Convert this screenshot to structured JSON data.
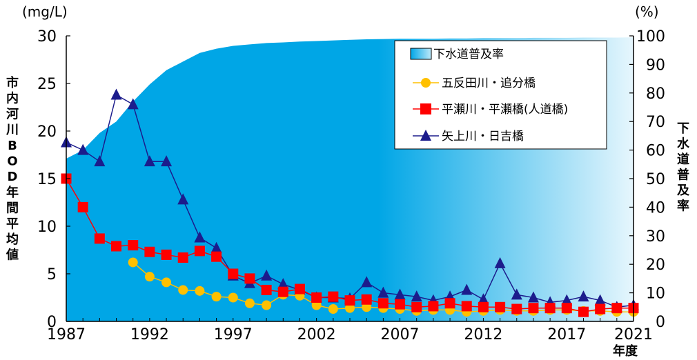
{
  "chart_data": {
    "type": "line",
    "left_axis": {
      "unit": "(mg/L)",
      "label": "市内河川BOD年間平均値",
      "range": [
        0,
        30
      ],
      "ticks": [
        "0",
        "5",
        "10",
        "15",
        "20",
        "25",
        "30"
      ]
    },
    "right_axis": {
      "unit": "(%)",
      "label": "下水道普及率",
      "range": [
        0,
        100
      ],
      "ticks": [
        "0",
        "10",
        "20",
        "30",
        "40",
        "50",
        "60",
        "70",
        "80",
        "90",
        "100"
      ]
    },
    "x_axis": {
      "label": "年度",
      "range": [
        1987,
        2021
      ],
      "ticks": [
        "1987",
        "1992",
        "1997",
        "2002",
        "2007",
        "2012",
        "2017",
        "2021"
      ]
    },
    "legend_position": "top-right",
    "series": [
      {
        "name": "下水道普及率",
        "type": "area",
        "axis": "right",
        "color": "#00a6e6",
        "x": [
          1987,
          1988,
          1989,
          1990,
          1991,
          1992,
          1993,
          1994,
          1995,
          1996,
          1997,
          1998,
          1999,
          2000,
          2001,
          2002,
          2003,
          2004,
          2005,
          2006,
          2007,
          2008,
          2009,
          2010,
          2011,
          2012,
          2013,
          2014,
          2015,
          2016,
          2017,
          2018,
          2019,
          2020,
          2021
        ],
        "values": [
          57,
          60,
          66,
          70,
          77,
          83,
          88,
          91,
          94,
          95.5,
          96.5,
          97,
          97.5,
          97.7,
          98,
          98.2,
          98.4,
          98.6,
          98.8,
          98.9,
          99,
          99,
          99,
          99.1,
          99.1,
          99.2,
          99.2,
          99.2,
          99.3,
          99.3,
          99.3,
          99.4,
          99.4,
          99.4,
          99.5
        ]
      },
      {
        "name": "五反田川・追分橋",
        "type": "line",
        "axis": "left",
        "color": "#ffc000",
        "marker": "circle",
        "x": [
          1991,
          1992,
          1993,
          1994,
          1995,
          1996,
          1997,
          1998,
          1999,
          2000,
          2001,
          2002,
          2003,
          2004,
          2005,
          2006,
          2007,
          2008,
          2009,
          2010,
          2011,
          2012,
          2013,
          2014,
          2015,
          2016,
          2017,
          2018,
          2019,
          2020,
          2021
        ],
        "values": [
          6.2,
          4.7,
          4.1,
          3.3,
          3.2,
          2.6,
          2.5,
          1.9,
          1.7,
          2.8,
          2.7,
          1.7,
          1.3,
          1.4,
          1.5,
          1.4,
          1.3,
          1.1,
          1.2,
          1.2,
          1.0,
          1.1,
          1.2,
          1.1,
          1.1,
          1.2,
          1.2,
          1.1,
          1.1,
          1.0,
          1.0
        ]
      },
      {
        "name": "平瀬川・平瀬橋(人道橋)",
        "type": "line",
        "axis": "left",
        "color": "#ff0000",
        "marker": "square",
        "x": [
          1987,
          1988,
          1989,
          1990,
          1991,
          1992,
          1993,
          1994,
          1995,
          1996,
          1997,
          1998,
          1999,
          2000,
          2001,
          2002,
          2003,
          2004,
          2005,
          2006,
          2007,
          2008,
          2009,
          2010,
          2011,
          2012,
          2013,
          2014,
          2015,
          2016,
          2017,
          2018,
          2019,
          2020,
          2021
        ],
        "values": [
          15.0,
          12.0,
          8.7,
          7.9,
          8.0,
          7.3,
          7.0,
          6.7,
          7.4,
          6.8,
          5.0,
          4.5,
          3.3,
          3.1,
          3.4,
          2.5,
          2.6,
          2.2,
          2.3,
          1.9,
          1.8,
          1.5,
          1.6,
          1.9,
          1.6,
          1.5,
          1.5,
          1.3,
          1.4,
          1.4,
          1.4,
          1.0,
          1.3,
          1.4,
          1.4
        ]
      },
      {
        "name": "矢上川・日吉橋",
        "type": "line",
        "axis": "left",
        "color": "#1c1c8c",
        "marker": "triangle",
        "x": [
          1987,
          1988,
          1989,
          1990,
          1991,
          1992,
          1993,
          1994,
          1995,
          1996,
          1997,
          1998,
          1999,
          2000,
          2001,
          2002,
          2003,
          2004,
          2005,
          2006,
          2007,
          2008,
          2009,
          2010,
          2011,
          2012,
          2013,
          2014,
          2015,
          2016,
          2017,
          2018,
          2019,
          2020,
          2021
        ],
        "values": [
          18.8,
          18.0,
          16.8,
          23.8,
          22.8,
          16.8,
          16.8,
          12.8,
          8.8,
          7.7,
          4.8,
          4.0,
          4.8,
          3.9,
          3.3,
          2.5,
          2.5,
          2.4,
          4.1,
          3.0,
          2.8,
          2.6,
          2.2,
          2.6,
          3.3,
          2.3,
          6.1,
          2.8,
          2.5,
          2.0,
          2.2,
          2.6,
          2.2,
          1.5,
          1.7
        ]
      }
    ]
  }
}
